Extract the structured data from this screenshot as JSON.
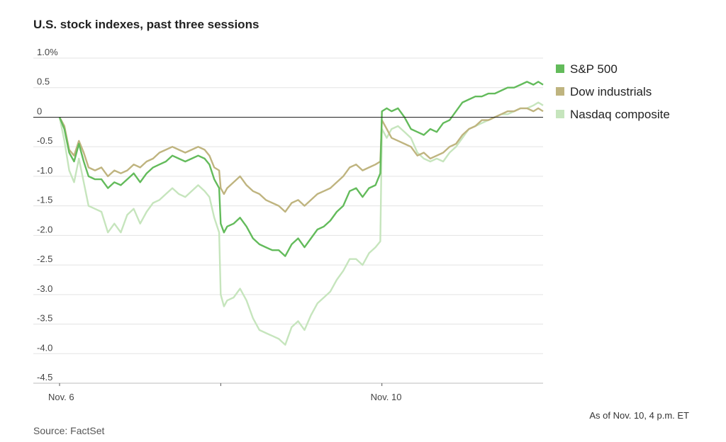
{
  "chart_data": {
    "type": "line",
    "title": "U.S. stock indexes, past three sessions",
    "y_ticks": [
      "1.0%",
      "0.5",
      "0",
      "-0.5",
      "-1.0",
      "-1.5",
      "-2.0",
      "-2.5",
      "-3.0",
      "-3.5",
      "-4.0",
      "-4.5"
    ],
    "ylim": [
      -4.5,
      1.0
    ],
    "xlim": [
      0,
      3
    ],
    "x_ticks": [
      {
        "x": 0,
        "label": "Nov. 6"
      },
      {
        "x": 1,
        "label": ""
      },
      {
        "x": 2,
        "label": "Nov. 10"
      }
    ],
    "grid": true,
    "legend_position": "right",
    "series": [
      {
        "name": "Nasdaq composite",
        "color": "#c6e5bd",
        "points": [
          [
            0,
            0
          ],
          [
            0.03,
            -0.4
          ],
          [
            0.06,
            -0.9
          ],
          [
            0.09,
            -1.1
          ],
          [
            0.12,
            -0.7
          ],
          [
            0.15,
            -1.1
          ],
          [
            0.18,
            -1.5
          ],
          [
            0.22,
            -1.55
          ],
          [
            0.26,
            -1.6
          ],
          [
            0.3,
            -1.95
          ],
          [
            0.34,
            -1.8
          ],
          [
            0.38,
            -1.95
          ],
          [
            0.42,
            -1.65
          ],
          [
            0.46,
            -1.55
          ],
          [
            0.5,
            -1.8
          ],
          [
            0.54,
            -1.6
          ],
          [
            0.58,
            -1.45
          ],
          [
            0.62,
            -1.4
          ],
          [
            0.66,
            -1.3
          ],
          [
            0.7,
            -1.2
          ],
          [
            0.74,
            -1.3
          ],
          [
            0.78,
            -1.35
          ],
          [
            0.82,
            -1.25
          ],
          [
            0.86,
            -1.15
          ],
          [
            0.9,
            -1.25
          ],
          [
            0.93,
            -1.35
          ],
          [
            0.96,
            -1.7
          ],
          [
            0.99,
            -1.95
          ],
          [
            1.0,
            -3.0
          ],
          [
            1.02,
            -3.2
          ],
          [
            1.04,
            -3.1
          ],
          [
            1.08,
            -3.05
          ],
          [
            1.12,
            -2.9
          ],
          [
            1.16,
            -3.1
          ],
          [
            1.2,
            -3.4
          ],
          [
            1.24,
            -3.6
          ],
          [
            1.28,
            -3.65
          ],
          [
            1.32,
            -3.7
          ],
          [
            1.36,
            -3.75
          ],
          [
            1.4,
            -3.85
          ],
          [
            1.44,
            -3.55
          ],
          [
            1.48,
            -3.45
          ],
          [
            1.52,
            -3.6
          ],
          [
            1.56,
            -3.35
          ],
          [
            1.6,
            -3.15
          ],
          [
            1.64,
            -3.05
          ],
          [
            1.68,
            -2.95
          ],
          [
            1.72,
            -2.75
          ],
          [
            1.76,
            -2.6
          ],
          [
            1.8,
            -2.4
          ],
          [
            1.84,
            -2.4
          ],
          [
            1.88,
            -2.5
          ],
          [
            1.92,
            -2.3
          ],
          [
            1.96,
            -2.2
          ],
          [
            1.99,
            -2.1
          ],
          [
            2.0,
            -0.2
          ],
          [
            2.03,
            -0.35
          ],
          [
            2.06,
            -0.2
          ],
          [
            2.1,
            -0.15
          ],
          [
            2.14,
            -0.25
          ],
          [
            2.18,
            -0.35
          ],
          [
            2.22,
            -0.6
          ],
          [
            2.26,
            -0.7
          ],
          [
            2.3,
            -0.75
          ],
          [
            2.34,
            -0.7
          ],
          [
            2.38,
            -0.75
          ],
          [
            2.42,
            -0.6
          ],
          [
            2.46,
            -0.5
          ],
          [
            2.5,
            -0.35
          ],
          [
            2.54,
            -0.2
          ],
          [
            2.58,
            -0.15
          ],
          [
            2.62,
            -0.1
          ],
          [
            2.66,
            -0.05
          ],
          [
            2.7,
            0.0
          ],
          [
            2.74,
            0.05
          ],
          [
            2.78,
            0.05
          ],
          [
            2.82,
            0.1
          ],
          [
            2.86,
            0.15
          ],
          [
            2.9,
            0.15
          ],
          [
            2.94,
            0.2
          ],
          [
            2.97,
            0.25
          ],
          [
            3.0,
            0.2
          ]
        ]
      },
      {
        "name": "Dow industrials",
        "color": "#bfb47f",
        "points": [
          [
            0,
            0
          ],
          [
            0.03,
            -0.15
          ],
          [
            0.06,
            -0.55
          ],
          [
            0.09,
            -0.65
          ],
          [
            0.12,
            -0.4
          ],
          [
            0.15,
            -0.6
          ],
          [
            0.18,
            -0.85
          ],
          [
            0.22,
            -0.9
          ],
          [
            0.26,
            -0.85
          ],
          [
            0.3,
            -1.0
          ],
          [
            0.34,
            -0.9
          ],
          [
            0.38,
            -0.95
          ],
          [
            0.42,
            -0.9
          ],
          [
            0.46,
            -0.8
          ],
          [
            0.5,
            -0.85
          ],
          [
            0.54,
            -0.75
          ],
          [
            0.58,
            -0.7
          ],
          [
            0.62,
            -0.6
          ],
          [
            0.66,
            -0.55
          ],
          [
            0.7,
            -0.5
          ],
          [
            0.74,
            -0.55
          ],
          [
            0.78,
            -0.6
          ],
          [
            0.82,
            -0.55
          ],
          [
            0.86,
            -0.5
          ],
          [
            0.9,
            -0.55
          ],
          [
            0.93,
            -0.65
          ],
          [
            0.96,
            -0.85
          ],
          [
            0.99,
            -0.9
          ],
          [
            1.0,
            -1.2
          ],
          [
            1.02,
            -1.3
          ],
          [
            1.04,
            -1.2
          ],
          [
            1.08,
            -1.1
          ],
          [
            1.12,
            -1.0
          ],
          [
            1.16,
            -1.15
          ],
          [
            1.2,
            -1.25
          ],
          [
            1.24,
            -1.3
          ],
          [
            1.28,
            -1.4
          ],
          [
            1.32,
            -1.45
          ],
          [
            1.36,
            -1.5
          ],
          [
            1.4,
            -1.6
          ],
          [
            1.44,
            -1.45
          ],
          [
            1.48,
            -1.4
          ],
          [
            1.52,
            -1.5
          ],
          [
            1.56,
            -1.4
          ],
          [
            1.6,
            -1.3
          ],
          [
            1.64,
            -1.25
          ],
          [
            1.68,
            -1.2
          ],
          [
            1.72,
            -1.1
          ],
          [
            1.76,
            -1.0
          ],
          [
            1.8,
            -0.85
          ],
          [
            1.84,
            -0.8
          ],
          [
            1.88,
            -0.9
          ],
          [
            1.92,
            -0.85
          ],
          [
            1.96,
            -0.8
          ],
          [
            1.99,
            -0.75
          ],
          [
            2.0,
            -0.05
          ],
          [
            2.03,
            -0.2
          ],
          [
            2.06,
            -0.35
          ],
          [
            2.1,
            -0.4
          ],
          [
            2.14,
            -0.45
          ],
          [
            2.18,
            -0.5
          ],
          [
            2.22,
            -0.65
          ],
          [
            2.26,
            -0.6
          ],
          [
            2.3,
            -0.7
          ],
          [
            2.34,
            -0.65
          ],
          [
            2.38,
            -0.6
          ],
          [
            2.42,
            -0.5
          ],
          [
            2.46,
            -0.45
          ],
          [
            2.5,
            -0.3
          ],
          [
            2.54,
            -0.2
          ],
          [
            2.58,
            -0.15
          ],
          [
            2.62,
            -0.05
          ],
          [
            2.66,
            -0.05
          ],
          [
            2.7,
            0.0
          ],
          [
            2.74,
            0.05
          ],
          [
            2.78,
            0.1
          ],
          [
            2.82,
            0.1
          ],
          [
            2.86,
            0.15
          ],
          [
            2.9,
            0.15
          ],
          [
            2.94,
            0.1
          ],
          [
            2.97,
            0.15
          ],
          [
            3.0,
            0.1
          ]
        ]
      },
      {
        "name": "S&P 500",
        "color": "#63bb5b",
        "points": [
          [
            0,
            0
          ],
          [
            0.03,
            -0.2
          ],
          [
            0.06,
            -0.6
          ],
          [
            0.09,
            -0.75
          ],
          [
            0.12,
            -0.45
          ],
          [
            0.15,
            -0.75
          ],
          [
            0.18,
            -1.0
          ],
          [
            0.22,
            -1.05
          ],
          [
            0.26,
            -1.05
          ],
          [
            0.3,
            -1.2
          ],
          [
            0.34,
            -1.1
          ],
          [
            0.38,
            -1.15
          ],
          [
            0.42,
            -1.05
          ],
          [
            0.46,
            -0.95
          ],
          [
            0.5,
            -1.1
          ],
          [
            0.54,
            -0.95
          ],
          [
            0.58,
            -0.85
          ],
          [
            0.62,
            -0.8
          ],
          [
            0.66,
            -0.75
          ],
          [
            0.7,
            -0.65
          ],
          [
            0.74,
            -0.7
          ],
          [
            0.78,
            -0.75
          ],
          [
            0.82,
            -0.7
          ],
          [
            0.86,
            -0.65
          ],
          [
            0.9,
            -0.7
          ],
          [
            0.93,
            -0.8
          ],
          [
            0.96,
            -1.05
          ],
          [
            0.99,
            -1.2
          ],
          [
            1.0,
            -1.8
          ],
          [
            1.02,
            -1.95
          ],
          [
            1.04,
            -1.85
          ],
          [
            1.08,
            -1.8
          ],
          [
            1.12,
            -1.7
          ],
          [
            1.16,
            -1.85
          ],
          [
            1.2,
            -2.05
          ],
          [
            1.24,
            -2.15
          ],
          [
            1.28,
            -2.2
          ],
          [
            1.32,
            -2.25
          ],
          [
            1.36,
            -2.25
          ],
          [
            1.4,
            -2.35
          ],
          [
            1.44,
            -2.15
          ],
          [
            1.48,
            -2.05
          ],
          [
            1.52,
            -2.2
          ],
          [
            1.56,
            -2.05
          ],
          [
            1.6,
            -1.9
          ],
          [
            1.64,
            -1.85
          ],
          [
            1.68,
            -1.75
          ],
          [
            1.72,
            -1.6
          ],
          [
            1.76,
            -1.5
          ],
          [
            1.8,
            -1.25
          ],
          [
            1.84,
            -1.2
          ],
          [
            1.88,
            -1.35
          ],
          [
            1.92,
            -1.2
          ],
          [
            1.96,
            -1.15
          ],
          [
            1.99,
            -0.95
          ],
          [
            2.0,
            0.1
          ],
          [
            2.03,
            0.15
          ],
          [
            2.06,
            0.1
          ],
          [
            2.1,
            0.15
          ],
          [
            2.14,
            0.0
          ],
          [
            2.18,
            -0.2
          ],
          [
            2.22,
            -0.25
          ],
          [
            2.26,
            -0.3
          ],
          [
            2.3,
            -0.2
          ],
          [
            2.34,
            -0.25
          ],
          [
            2.38,
            -0.1
          ],
          [
            2.42,
            -0.05
          ],
          [
            2.46,
            0.1
          ],
          [
            2.5,
            0.25
          ],
          [
            2.54,
            0.3
          ],
          [
            2.58,
            0.35
          ],
          [
            2.62,
            0.35
          ],
          [
            2.66,
            0.4
          ],
          [
            2.7,
            0.4
          ],
          [
            2.74,
            0.45
          ],
          [
            2.78,
            0.5
          ],
          [
            2.82,
            0.5
          ],
          [
            2.86,
            0.55
          ],
          [
            2.9,
            0.6
          ],
          [
            2.94,
            0.55
          ],
          [
            2.97,
            0.6
          ],
          [
            3.0,
            0.55
          ]
        ]
      }
    ],
    "legend": [
      {
        "name": "S&P 500",
        "color": "#63bb5b"
      },
      {
        "name": "Dow industrials",
        "color": "#bfb47f"
      },
      {
        "name": "Nasdaq composite",
        "color": "#c6e5bd"
      }
    ],
    "note": "As of Nov. 10, 4 p.m. ET",
    "source": "Source: FactSet"
  }
}
